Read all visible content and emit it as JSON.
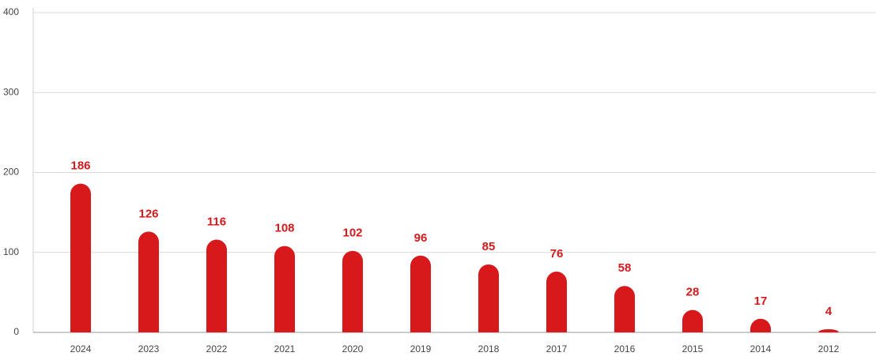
{
  "chart_data": {
    "type": "bar",
    "categories": [
      "2024",
      "2023",
      "2022",
      "2021",
      "2020",
      "2019",
      "2018",
      "2017",
      "2016",
      "2015",
      "2014",
      "2012"
    ],
    "values": [
      186,
      126,
      116,
      108,
      102,
      96,
      85,
      76,
      58,
      28,
      17,
      4
    ],
    "color": "#d7191c",
    "ylim": [
      0,
      400
    ],
    "yticks": [
      0,
      100,
      200,
      300,
      400
    ],
    "grid": true
  }
}
